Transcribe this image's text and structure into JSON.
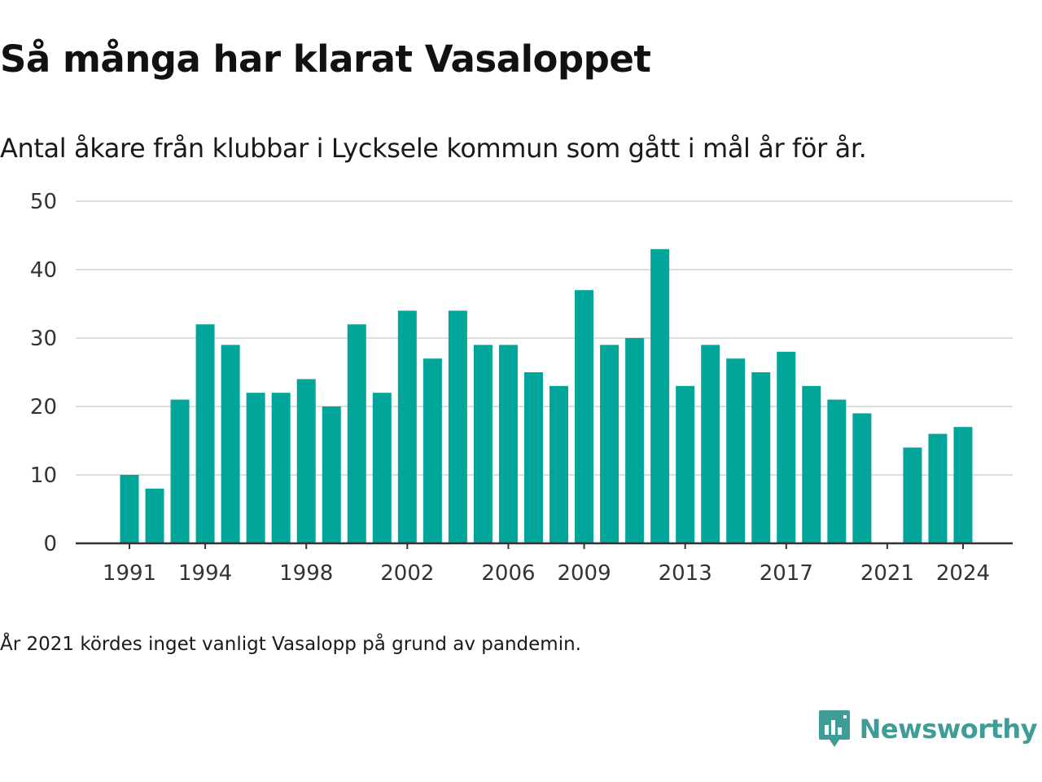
{
  "header": {
    "title": "Så många har klarat Vasaloppet",
    "subtitle": "Antal åkare från klubbar i Lycksele kommun som gått i mål år för år."
  },
  "footnote": "År 2021 kördes inget vanligt Vasalopp på grund av pandemin.",
  "brand": {
    "name": "Newsworthy",
    "icon": "newsworthy-logo-icon",
    "color": "#3f9c97"
  },
  "colors": {
    "bar": "#02a59a",
    "grid": "#dddddd",
    "axis": "#333333"
  },
  "chart_data": {
    "type": "bar",
    "title": "Så många har klarat Vasaloppet",
    "subtitle": "Antal åkare från klubbar i Lycksele kommun som gått i mål år för år.",
    "xlabel": "",
    "ylabel": "",
    "categories": [
      1991,
      1992,
      1993,
      1994,
      1995,
      1996,
      1997,
      1998,
      1999,
      2000,
      2001,
      2002,
      2003,
      2004,
      2005,
      2006,
      2007,
      2008,
      2009,
      2010,
      2011,
      2012,
      2013,
      2014,
      2015,
      2016,
      2017,
      2018,
      2019,
      2020,
      2021,
      2022,
      2023,
      2024
    ],
    "values": [
      10,
      8,
      21,
      32,
      29,
      22,
      22,
      24,
      20,
      32,
      22,
      34,
      27,
      34,
      29,
      29,
      25,
      23,
      37,
      29,
      30,
      43,
      23,
      29,
      27,
      25,
      28,
      23,
      21,
      19,
      null,
      14,
      16,
      17
    ],
    "x_tick_labels": [
      "1991",
      "1994",
      "1998",
      "2002",
      "2006",
      "2009",
      "2013",
      "2017",
      "2021",
      "2024"
    ],
    "y_ticks": [
      0,
      10,
      20,
      30,
      40,
      50
    ],
    "ylim": [
      0,
      50
    ],
    "grid": true,
    "legend": "none"
  }
}
